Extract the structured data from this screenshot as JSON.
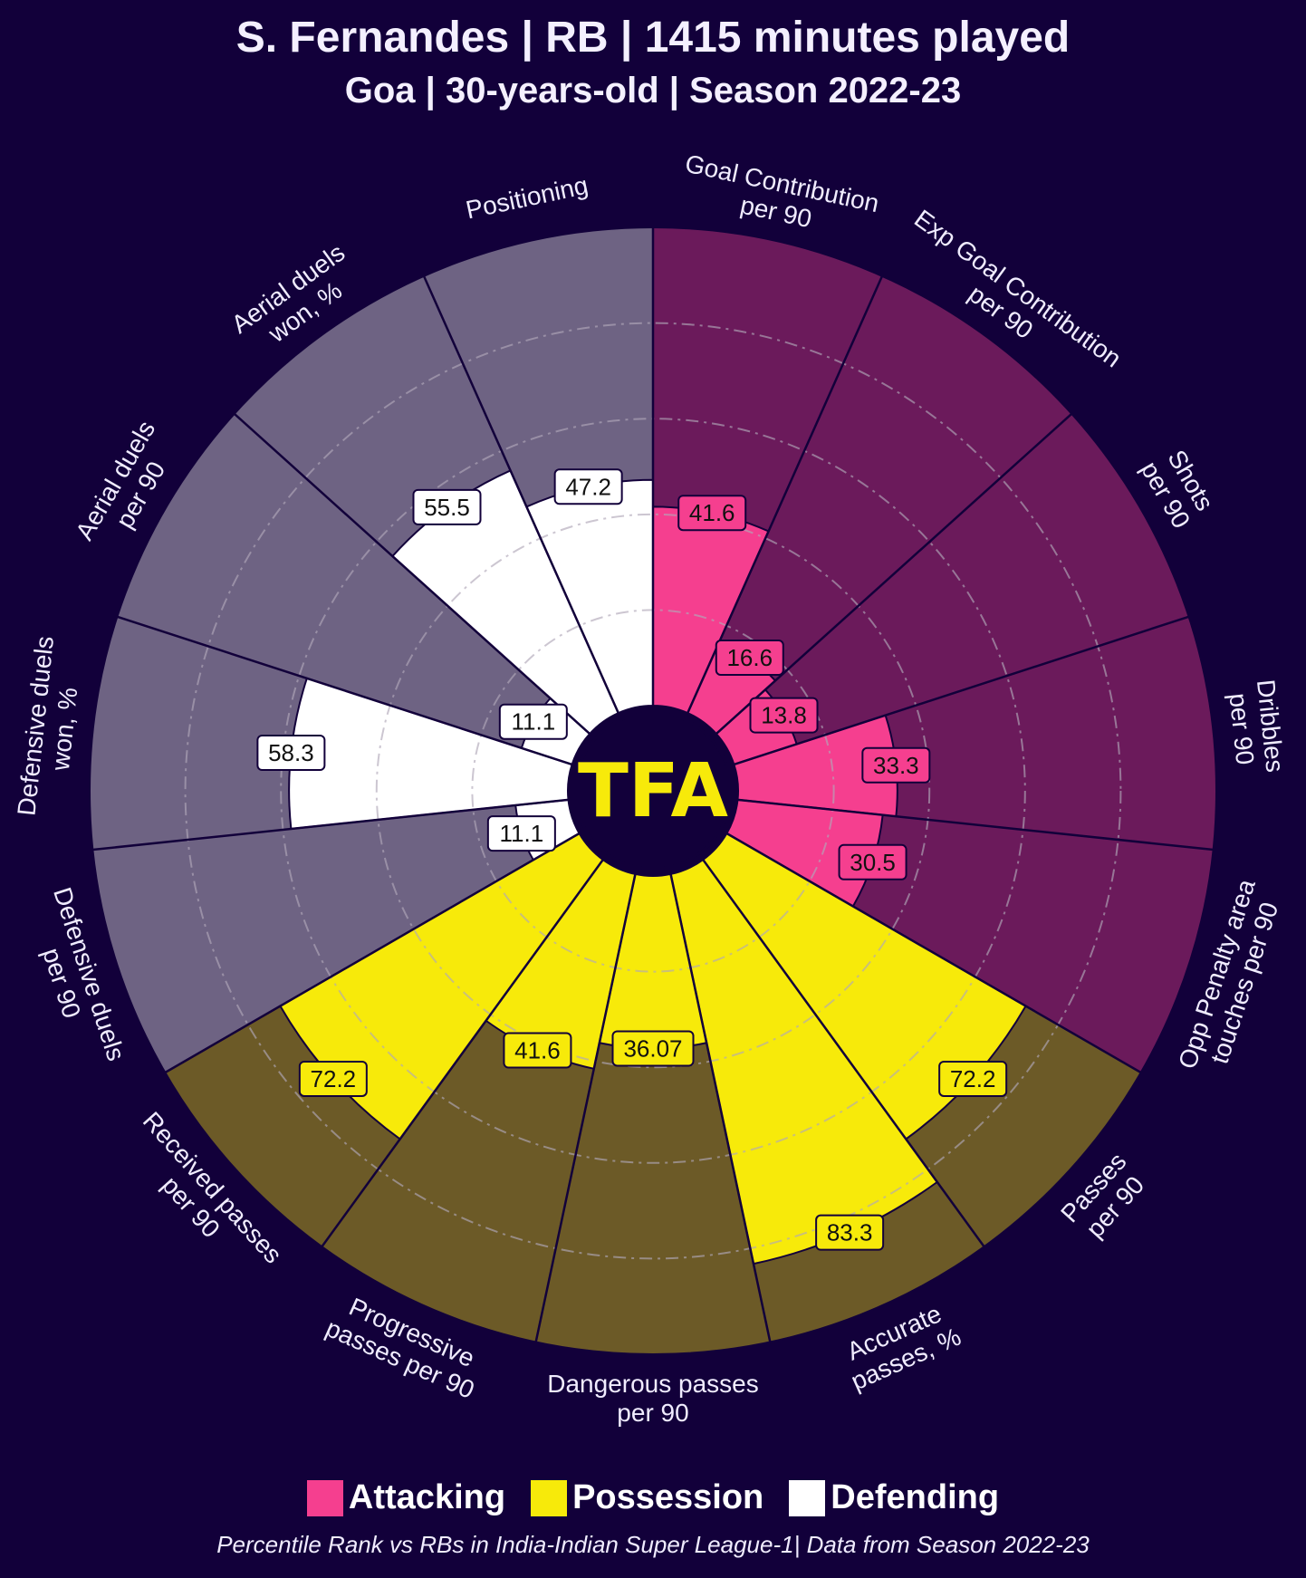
{
  "header": {
    "title": "S. Fernandes | RB | 1415 minutes played",
    "subtitle": "Goa | 30-years-old | Season 2022-23"
  },
  "logo_text": "TFA",
  "legend": [
    {
      "label": "Attacking",
      "color": "#f53f8f"
    },
    {
      "label": "Possession",
      "color": "#f7ea0a"
    },
    {
      "label": "Defending",
      "color": "#ffffff"
    }
  ],
  "footer": "Percentile Rank vs RBs in India-Indian Super League-1| Data from Season 2022-23",
  "colors": {
    "background": "#12003a",
    "attacking_fill": "#f53f8f",
    "attacking_bg": "#6b1a5b",
    "possession_fill": "#f7ea0a",
    "possession_bg": "#6c5a27",
    "defending_fill": "#ffffff",
    "defending_bg": "#6e6383",
    "logo_text": "#f7ea0a"
  },
  "chart_data": {
    "type": "pizza",
    "range": [
      0,
      100
    ],
    "parameters": [
      {
        "label": "Goal Contribution\nper 90",
        "value": 41.6,
        "value_label": "41.6",
        "group": "attacking"
      },
      {
        "label": "Exp Goal Contribution\nper 90",
        "value": 16.6,
        "value_label": "16.6",
        "group": "attacking"
      },
      {
        "label": "Shots\nper 90",
        "value": 13.8,
        "value_label": "13.8",
        "group": "attacking"
      },
      {
        "label": "Dribbles\nper 90",
        "value": 33.3,
        "value_label": "33.3",
        "group": "attacking"
      },
      {
        "label": "Opp Penalty area\ntouches per 90",
        "value": 30.5,
        "value_label": "30.5",
        "group": "attacking"
      },
      {
        "label": "Passes\nper 90",
        "value": 72.2,
        "value_label": "72.2",
        "group": "possession"
      },
      {
        "label": "Accurate\npasses, %",
        "value": 83.3,
        "value_label": "83.3",
        "group": "possession"
      },
      {
        "label": "Dangerous passes\nper 90",
        "value": 36.07,
        "value_label": "36.07",
        "group": "possession"
      },
      {
        "label": "Progressive\npasses per 90",
        "value": 41.6,
        "value_label": "41.6",
        "group": "possession"
      },
      {
        "label": "Received passes\nper 90",
        "value": 72.2,
        "value_label": "72.2",
        "group": "possession"
      },
      {
        "label": "Defensive duels\nper 90",
        "value": 11.1,
        "value_label": "11.1",
        "group": "defending"
      },
      {
        "label": "Defensive duels\nwon, %",
        "value": 58.3,
        "value_label": "58.3",
        "group": "defending"
      },
      {
        "label": "Aerial duels\nper 90",
        "value": 11.1,
        "value_label": "11.1",
        "group": "defending"
      },
      {
        "label": "Aerial duels\nwon, %",
        "value": 55.5,
        "value_label": "55.5",
        "group": "defending"
      },
      {
        "label": "Positioning",
        "value": 47.2,
        "value_label": "47.2",
        "group": "defending"
      }
    ]
  }
}
